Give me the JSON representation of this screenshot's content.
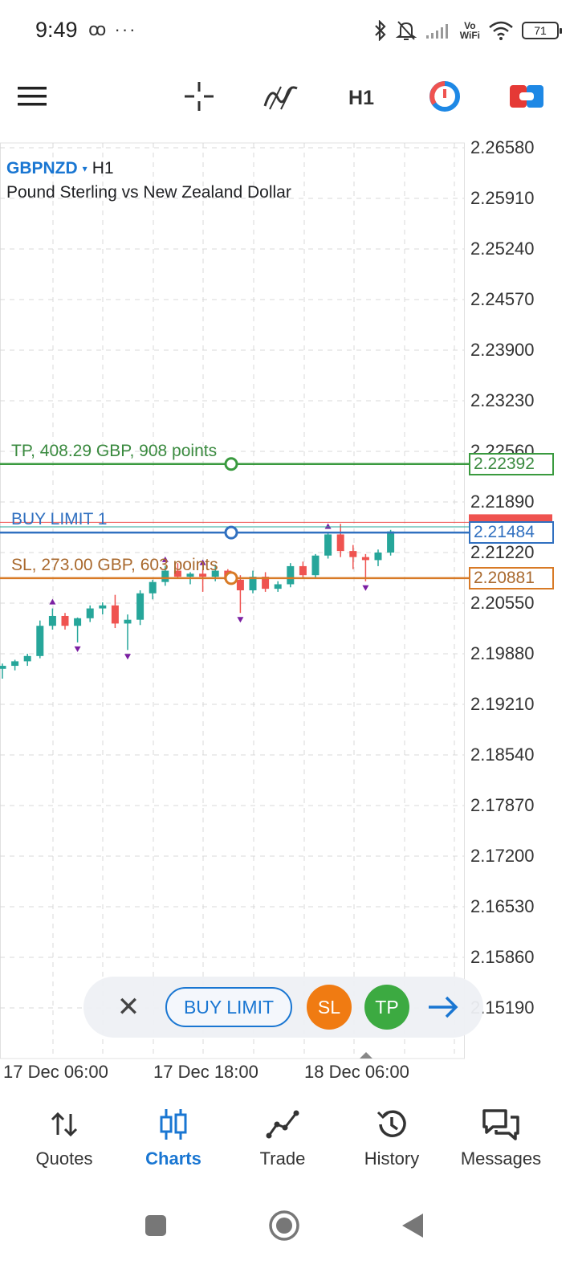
{
  "status_bar": {
    "time": "9:49",
    "left_icons": "ꝏ ···",
    "volte": "Vo\nWiFi",
    "battery": "71"
  },
  "toolbar": {
    "period": "H1",
    "icons": [
      "menu-icon",
      "crosshair-icon",
      "indicators-icon",
      "timer-icon",
      "one-click-trading-icon"
    ]
  },
  "chart": {
    "symbol": "GBPNZD",
    "caret": "▾",
    "period": "H1",
    "description": "Pound Sterling vs New Zealand Dollar",
    "price_axis": [
      "2.26580",
      "2.25910",
      "2.25240",
      "2.24570",
      "2.23900",
      "2.23230",
      "2.22560",
      "2.21890",
      "2.21220",
      "2.20550",
      "2.19880",
      "2.19210",
      "2.18540",
      "2.17870",
      "2.17200",
      "2.16530",
      "2.15860",
      "2.15190"
    ],
    "time_axis": [
      "17 Dec 06:00",
      "17 Dec 18:00",
      "18 Dec 06:00"
    ],
    "order_lines": {
      "tp": {
        "label": "TP, 408.29 GBP, 908 points",
        "price": "2.22392",
        "color": "#3a9a3f"
      },
      "buy_limit": {
        "label": "BUY LIMIT 1",
        "price": "2.21484",
        "color": "#3070c0"
      },
      "sl": {
        "label": "SL, 273.00 GBP, 603 points",
        "price": "2.20881",
        "color": "#d87a26"
      }
    },
    "colors": {
      "bull": "#26a69a",
      "bear": "#ef5350",
      "grid": "#d8d8d8"
    }
  },
  "chart_data": {
    "type": "candlestick",
    "title": "",
    "symbol": "GBPNZD",
    "timeframe": "H1",
    "ylim": [
      2.1519,
      2.2658
    ],
    "yticks": [
      2.2658,
      2.2591,
      2.2524,
      2.2457,
      2.239,
      2.2323,
      2.2256,
      2.2189,
      2.2122,
      2.2055,
      2.1988,
      2.1921,
      2.1854,
      2.1787,
      2.172,
      2.1653,
      2.1586,
      2.1519
    ],
    "xticks": [
      "17 Dec 06:00",
      "17 Dec 18:00",
      "18 Dec 06:00"
    ],
    "candles": [
      {
        "o": 2.1968,
        "h": 2.1975,
        "l": 2.1955,
        "c": 2.1972
      },
      {
        "o": 2.1972,
        "h": 2.198,
        "l": 2.1966,
        "c": 2.1978
      },
      {
        "o": 2.1978,
        "h": 2.1988,
        "l": 2.1972,
        "c": 2.1985
      },
      {
        "o": 2.1985,
        "h": 2.2032,
        "l": 2.1982,
        "c": 2.2025
      },
      {
        "o": 2.2025,
        "h": 2.2048,
        "l": 2.202,
        "c": 2.2038
      },
      {
        "o": 2.2038,
        "h": 2.2042,
        "l": 2.202,
        "c": 2.2025
      },
      {
        "o": 2.2025,
        "h": 2.2036,
        "l": 2.2003,
        "c": 2.2035
      },
      {
        "o": 2.2035,
        "h": 2.2052,
        "l": 2.203,
        "c": 2.2048
      },
      {
        "o": 2.2048,
        "h": 2.2056,
        "l": 2.204,
        "c": 2.2052
      },
      {
        "o": 2.2052,
        "h": 2.2066,
        "l": 2.2022,
        "c": 2.2028
      },
      {
        "o": 2.2028,
        "h": 2.204,
        "l": 2.1993,
        "c": 2.2033
      },
      {
        "o": 2.2033,
        "h": 2.2072,
        "l": 2.2026,
        "c": 2.2068
      },
      {
        "o": 2.2068,
        "h": 2.2086,
        "l": 2.206,
        "c": 2.2083
      },
      {
        "o": 2.2083,
        "h": 2.2104,
        "l": 2.2078,
        "c": 2.2098
      },
      {
        "o": 2.2098,
        "h": 2.2108,
        "l": 2.2087,
        "c": 2.209
      },
      {
        "o": 2.209,
        "h": 2.2096,
        "l": 2.208,
        "c": 2.2094
      },
      {
        "o": 2.2094,
        "h": 2.21,
        "l": 2.207,
        "c": 2.209
      },
      {
        "o": 2.209,
        "h": 2.2106,
        "l": 2.2084,
        "c": 2.2098
      },
      {
        "o": 2.2098,
        "h": 2.21,
        "l": 2.2082,
        "c": 2.2086
      },
      {
        "o": 2.2086,
        "h": 2.2092,
        "l": 2.2042,
        "c": 2.2072
      },
      {
        "o": 2.2072,
        "h": 2.2098,
        "l": 2.2068,
        "c": 2.209
      },
      {
        "o": 2.209,
        "h": 2.2096,
        "l": 2.207,
        "c": 2.2074
      },
      {
        "o": 2.2074,
        "h": 2.2084,
        "l": 2.207,
        "c": 2.208
      },
      {
        "o": 2.208,
        "h": 2.2108,
        "l": 2.2076,
        "c": 2.2104
      },
      {
        "o": 2.2104,
        "h": 2.211,
        "l": 2.2088,
        "c": 2.2092
      },
      {
        "o": 2.2092,
        "h": 2.212,
        "l": 2.2088,
        "c": 2.2118
      },
      {
        "o": 2.2118,
        "h": 2.2148,
        "l": 2.2114,
        "c": 2.2146
      },
      {
        "o": 2.2146,
        "h": 2.216,
        "l": 2.2116,
        "c": 2.2124
      },
      {
        "o": 2.2124,
        "h": 2.2132,
        "l": 2.21,
        "c": 2.2116
      },
      {
        "o": 2.2116,
        "h": 2.212,
        "l": 2.2084,
        "c": 2.2112
      },
      {
        "o": 2.2112,
        "h": 2.2126,
        "l": 2.2104,
        "c": 2.2122
      },
      {
        "o": 2.2122,
        "h": 2.2152,
        "l": 2.2118,
        "c": 2.215
      }
    ],
    "fractal_up_index": [
      4,
      13,
      16,
      26
    ],
    "fractal_down_index": [
      6,
      10,
      19,
      29
    ],
    "levels": [
      {
        "name": "TP",
        "price": 2.22392
      },
      {
        "name": "BUY LIMIT 1",
        "price": 2.21484
      },
      {
        "name": "SL",
        "price": 2.20881
      }
    ]
  },
  "order_pill": {
    "close": "✕",
    "buy_limit": "BUY LIMIT",
    "sl": "SL",
    "tp": "TP"
  },
  "bottom_nav": [
    {
      "label": "Quotes",
      "icon": "quotes-icon"
    },
    {
      "label": "Charts",
      "icon": "charts-icon",
      "active": true
    },
    {
      "label": "Trade",
      "icon": "trade-icon"
    },
    {
      "label": "History",
      "icon": "history-icon"
    },
    {
      "label": "Messages",
      "icon": "messages-icon"
    }
  ]
}
